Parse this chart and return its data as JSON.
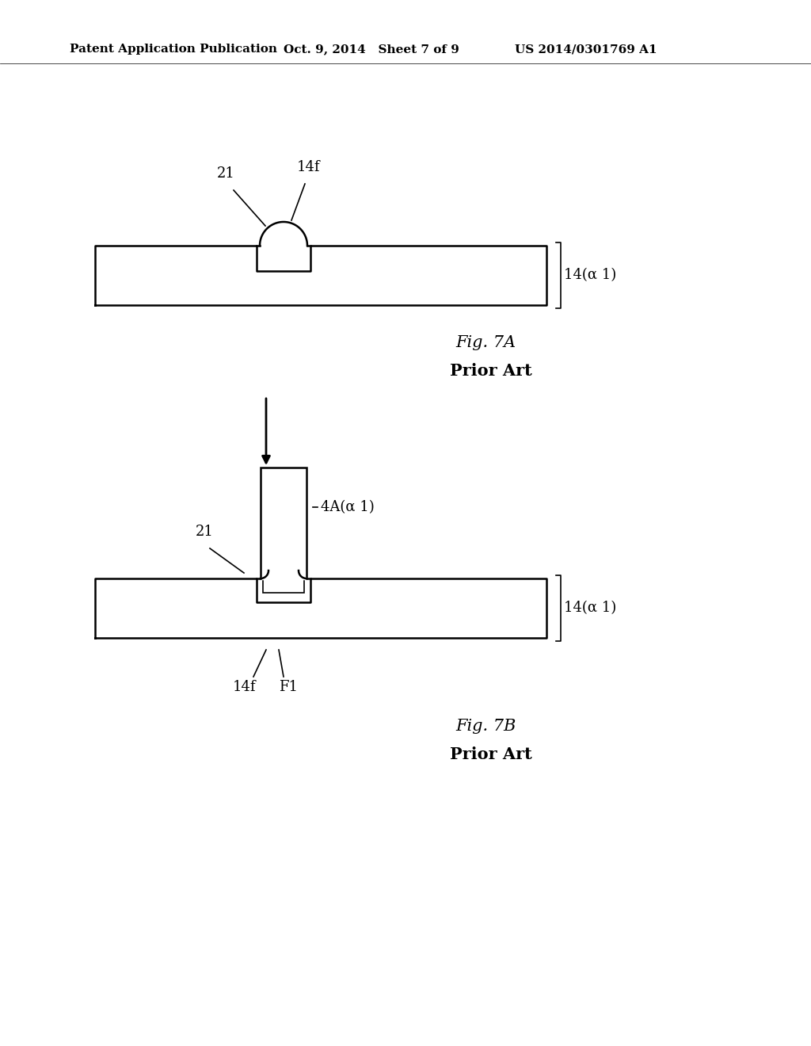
{
  "bg_color": "#ffffff",
  "header_left": "Patent Application Publication",
  "header_mid": "Oct. 9, 2014   Sheet 7 of 9",
  "header_right": "US 2014/0301769 A1",
  "fig7a_label": "Fig. 7A",
  "fig7a_prior": "Prior Art",
  "fig7b_label": "Fig. 7B",
  "fig7b_prior": "Prior Art",
  "label_21_a": "21",
  "label_14f_a": "14f",
  "label_14a1_a": "14(α 1)",
  "label_4A_a1": "4A(α 1)",
  "label_21_b": "21",
  "label_14a1_b": "14(α 1)",
  "label_14f_b": "14f",
  "label_F1": "F1"
}
